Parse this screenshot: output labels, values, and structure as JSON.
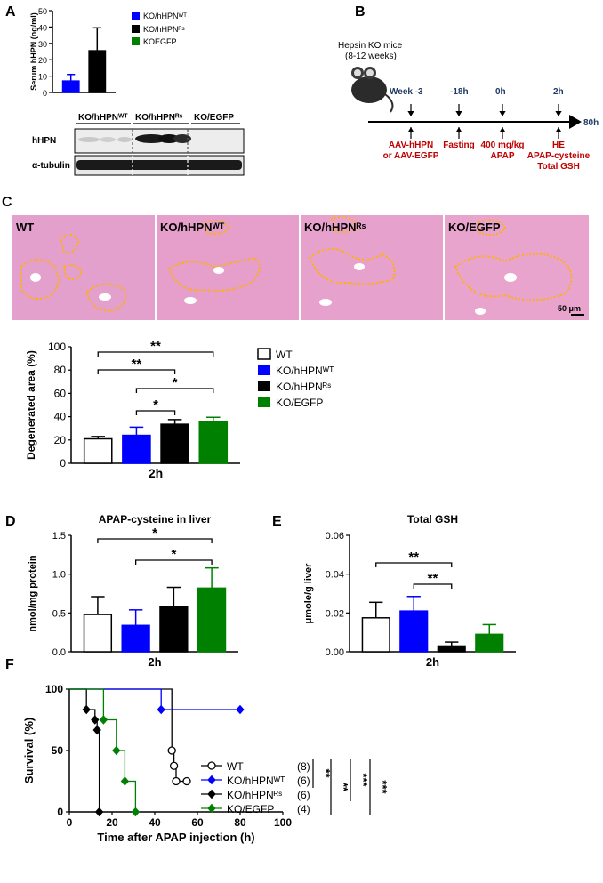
{
  "panel_letters": {
    "a": "A",
    "b": "B",
    "c": "C",
    "d": "D",
    "e": "E",
    "f": "F"
  },
  "colors": {
    "wt": "#ffffff",
    "hhpn_wt": "#0000ff",
    "hhpn_rs": "#000000",
    "egfp": "#008000",
    "annot_red": "#c00000",
    "annot_blue": "#1f3864",
    "he_pink": "#e79ac7"
  },
  "panel_a": {
    "western": {
      "groups": [
        "KO/hHPNᵂᵀ",
        "KO/hHPNᴿˢ",
        "KO/EGFP"
      ],
      "rows": [
        "hHPN",
        "α-tubulin"
      ]
    },
    "legend": [
      "KO/hHPNᵂᵀ",
      "KO/hHPNᴿˢ",
      "KOEGFP"
    ]
  },
  "panel_b": {
    "mouse_label": [
      "Hepsin KO mice",
      "(8-12 weeks)"
    ],
    "timepoints": [
      "Week -3",
      "-18h",
      "0h",
      "2h"
    ],
    "end_label": "80h",
    "events": [
      [
        "AAV-hHPN",
        "or AAV-EGFP"
      ],
      [
        "Fasting"
      ],
      [
        "400 mg/kg",
        "APAP"
      ],
      [
        "HE",
        "APAP-cysteine",
        "Total GSH"
      ]
    ]
  },
  "panel_c": {
    "image_labels": [
      "WT",
      "KO/hHPNᵂᵀ",
      "KO/hHPNᴿˢ",
      "KO/EGFP"
    ],
    "scale_bar": "50 μm"
  },
  "chart_data": [
    {
      "id": "serum_hhpn",
      "type": "bar",
      "categories": [
        "KO/hHPNᵂᵀ",
        "KO/hHPNᴿˢ"
      ],
      "values": [
        7,
        25.5
      ],
      "errors": [
        4,
        14
      ],
      "ylabel": "Serum hHPN (ng/ml)",
      "xlabel": "",
      "ylim": [
        0,
        50
      ],
      "yticks": [
        0,
        10,
        20,
        30,
        40,
        50
      ],
      "legend": [
        "KO/hHPNᵂᵀ",
        "KO/hHPNᴿˢ",
        "KOEGFP"
      ]
    },
    {
      "id": "degenerated_area",
      "type": "bar",
      "categories": [
        "WT",
        "KO/hHPNᵂᵀ",
        "KO/hHPNᴿˢ",
        "KO/EGFP"
      ],
      "values": [
        21,
        24,
        33.5,
        36
      ],
      "errors": [
        2,
        7,
        4,
        3.5
      ],
      "ylabel": "Degenerated area (%)",
      "xlabel": "2h",
      "ylim": [
        0,
        100
      ],
      "yticks": [
        0,
        20,
        40,
        60,
        80,
        100
      ],
      "significance": [
        "**",
        "**",
        "*",
        "*"
      ],
      "legend": [
        "WT",
        "KO/hHPNᵂᵀ",
        "KO/hHPNᴿˢ",
        "KO/EGFP"
      ]
    },
    {
      "id": "apap_cysteine",
      "type": "bar",
      "title": "APAP-cysteine in liver",
      "categories": [
        "WT",
        "KO/hHPNᵂᵀ",
        "KO/hHPNᴿˢ",
        "KO/EGFP"
      ],
      "values": [
        0.48,
        0.34,
        0.58,
        0.82
      ],
      "errors": [
        0.23,
        0.2,
        0.25,
        0.26
      ],
      "ylabel": "nmol/mg protein",
      "xlabel": "2h",
      "ylim": [
        0,
        1.5
      ],
      "yticks": [
        "0.0",
        "0.5",
        "1.0",
        "1.5"
      ],
      "significance": [
        "*",
        "*"
      ]
    },
    {
      "id": "total_gsh",
      "type": "bar",
      "title": "Total GSH",
      "categories": [
        "WT",
        "KO/hHPNᵂᵀ",
        "KO/hHPNᴿˢ",
        "KO/EGFP"
      ],
      "values": [
        0.0175,
        0.021,
        0.003,
        0.009
      ],
      "errors": [
        0.008,
        0.0075,
        0.002,
        0.005
      ],
      "ylabel": "μmole/g liver",
      "xlabel": "2h",
      "ylim": [
        0,
        0.06
      ],
      "yticks": [
        "0.00",
        "0.02",
        "0.04",
        "0.06"
      ],
      "significance": [
        "**",
        "**"
      ]
    },
    {
      "id": "survival",
      "type": "line",
      "xlabel": "Time after APAP injection (h)",
      "ylabel": "Survival (%)",
      "xlim": [
        0,
        100
      ],
      "ylim": [
        0,
        100
      ],
      "xticks": [
        0,
        20,
        40,
        60,
        80,
        100
      ],
      "yticks": [
        0,
        50,
        100
      ],
      "series": [
        {
          "name": "WT",
          "n": "(8)",
          "step": [
            [
              0,
              100
            ],
            [
              48,
              100
            ],
            [
              48,
              50
            ],
            [
              49,
              50
            ],
            [
              49,
              37.5
            ],
            [
              50,
              37.5
            ],
            [
              50,
              25
            ],
            [
              55,
              25
            ]
          ],
          "markers": [
            [
              48,
              50
            ],
            [
              49,
              37.5
            ],
            [
              50,
              25
            ],
            [
              55,
              25
            ]
          ]
        },
        {
          "name": "KO/hHPNᵂᵀ",
          "n": "(6)",
          "step": [
            [
              0,
              100
            ],
            [
              43,
              100
            ],
            [
              43,
              83.3
            ],
            [
              80,
              83.3
            ]
          ],
          "markers": [
            [
              43,
              83.3
            ],
            [
              80,
              83.3
            ]
          ]
        },
        {
          "name": "KO/hHPNᴿˢ",
          "n": "(6)",
          "step": [
            [
              0,
              100
            ],
            [
              8,
              100
            ],
            [
              8,
              83.3
            ],
            [
              12,
              83.3
            ],
            [
              12,
              75
            ],
            [
              13,
              75
            ],
            [
              13,
              66.7
            ],
            [
              14,
              66.7
            ],
            [
              14,
              0
            ]
          ],
          "markers": [
            [
              8,
              83.3
            ],
            [
              12,
              75
            ],
            [
              13,
              66.7
            ],
            [
              14,
              0
            ]
          ]
        },
        {
          "name": "KO/EGFP",
          "n": "(4)",
          "step": [
            [
              0,
              100
            ],
            [
              16,
              100
            ],
            [
              16,
              75
            ],
            [
              22,
              75
            ],
            [
              22,
              50
            ],
            [
              26,
              50
            ],
            [
              26,
              25
            ],
            [
              31,
              25
            ],
            [
              31,
              0
            ]
          ],
          "markers": [
            [
              16,
              75
            ],
            [
              22,
              50
            ],
            [
              26,
              25
            ],
            [
              31,
              0
            ]
          ]
        }
      ],
      "significance": [
        "**",
        "**",
        "***",
        "***"
      ]
    }
  ]
}
